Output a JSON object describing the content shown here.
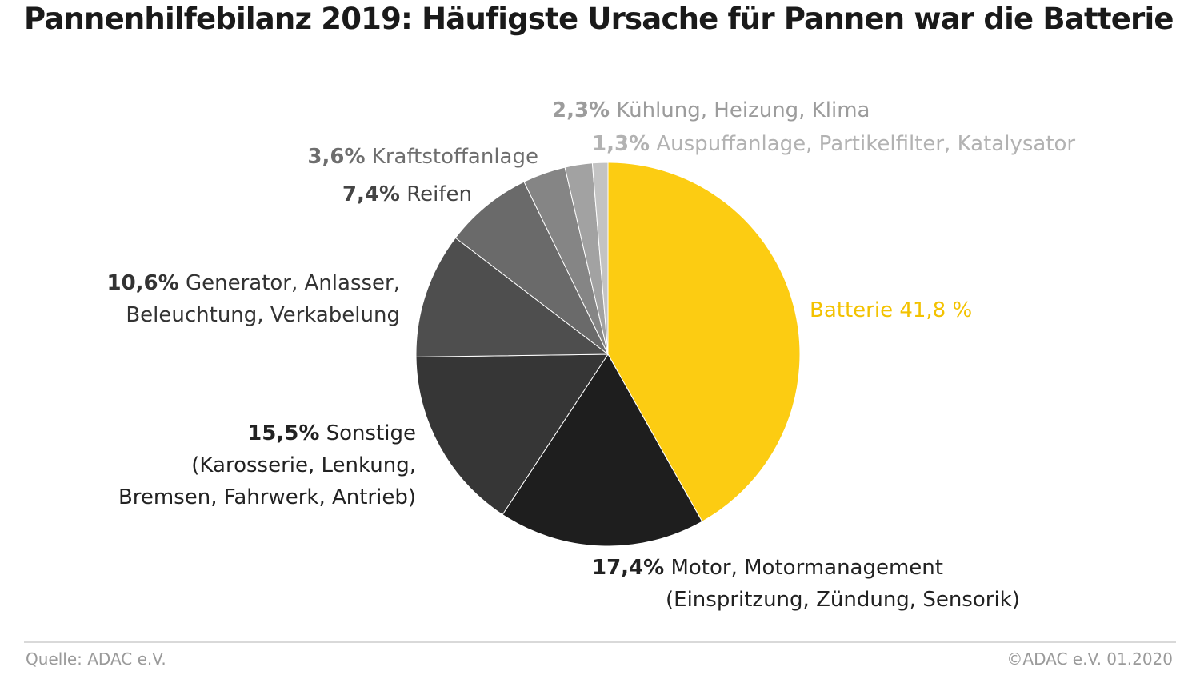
{
  "title": "Pannenhilfebilanz 2019: Häufigste Ursache für Pannen war die Batterie",
  "chart_data": {
    "type": "pie",
    "start": "top",
    "direction": "clockwise",
    "slices": [
      {
        "value": 41.8,
        "color": "#fccc12"
      },
      {
        "value": 17.4,
        "color": "#1e1e1e"
      },
      {
        "value": 15.5,
        "color": "#363636"
      },
      {
        "value": 10.6,
        "color": "#4e4e4e"
      },
      {
        "value": 7.4,
        "color": "#6a6a6a"
      },
      {
        "value": 3.6,
        "color": "#858585"
      },
      {
        "value": 2.3,
        "color": "#a2a2a2"
      },
      {
        "value": 1.3,
        "color": "#c3c3c3"
      }
    ],
    "labels": {
      "battery": {
        "text": "Batterie 41,8 %",
        "color": "#f3c200"
      },
      "motor": {
        "pct": "17,4%",
        "line1": "Motor, Motormanagement",
        "line2": "(Einspritzung, Zündung, Sensorik)",
        "color": "#222222"
      },
      "other": {
        "pct": "15,5%",
        "line1": "Sonstige",
        "line2": "(Karosserie, Lenkung,",
        "line3": "Bremsen, Fahrwerk, Antrieb)",
        "color": "#222222"
      },
      "generator": {
        "pct": "10,6%",
        "line1": "Generator, Anlasser,",
        "line2": "Beleuchtung, Verkabelung",
        "color": "#333333"
      },
      "tires": {
        "pct": "7,4%",
        "line1": "Reifen",
        "color": "#444444"
      },
      "fuel": {
        "pct": "3,6%",
        "line1": "Kraftstoffanlage",
        "color": "#6e6e6e"
      },
      "cooling": {
        "pct": "2,3%",
        "line1": "Kühlung, Heizung, Klima",
        "color": "#9c9c9c"
      },
      "exhaust": {
        "pct": "1,3%",
        "line1": "Auspuffanlage, Partikelfilter, Katalysator",
        "color": "#b2b2b2"
      }
    }
  },
  "footer": {
    "source": "Quelle: ADAC e.V.",
    "credit": "©ADAC e.V.  01.2020"
  }
}
